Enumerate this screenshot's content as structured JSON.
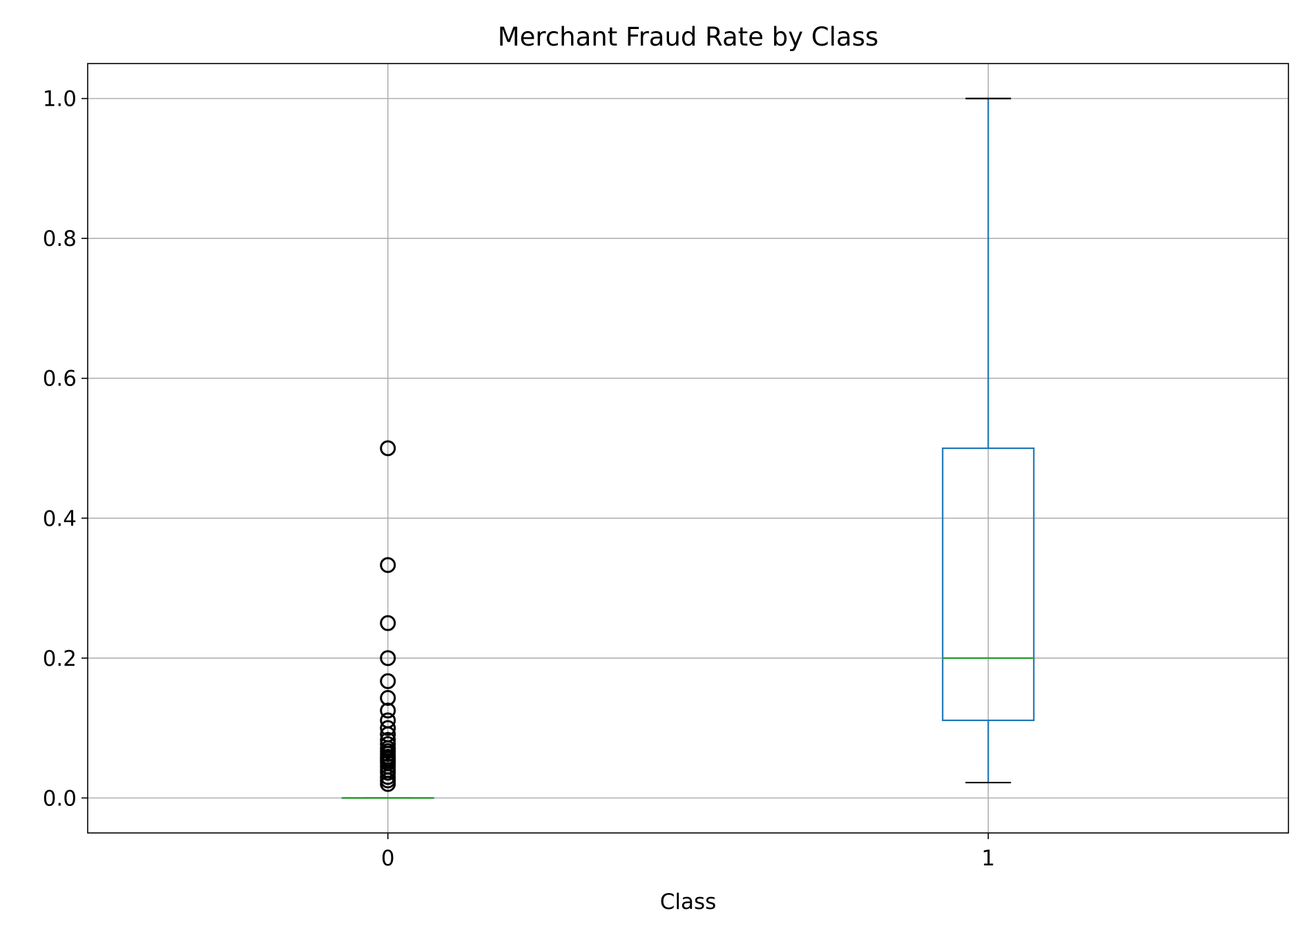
{
  "chart_data": {
    "type": "box",
    "title": "Merchant Fraud Rate by Class",
    "xlabel": "Class",
    "ylabel": "",
    "ylim": [
      -0.05,
      1.05
    ],
    "yticks": [
      0.0,
      0.2,
      0.4,
      0.6,
      0.8,
      1.0
    ],
    "ytick_labels": [
      "0.0",
      "0.2",
      "0.4",
      "0.6",
      "0.8",
      "1.0"
    ],
    "grid": true,
    "categories": [
      "0",
      "1"
    ],
    "boxes": [
      {
        "category": "0",
        "whisker_low": 0.0,
        "q1": 0.0,
        "median": 0.0,
        "q3": 0.0,
        "whisker_high": 0.0,
        "outliers": [
          0.5,
          0.333,
          0.25,
          0.2,
          0.167,
          0.143,
          0.125,
          0.111,
          0.1,
          0.091,
          0.083,
          0.077,
          0.071,
          0.067,
          0.063,
          0.059,
          0.056,
          0.053,
          0.05,
          0.045,
          0.04,
          0.036,
          0.03,
          0.025,
          0.02
        ]
      },
      {
        "category": "1",
        "whisker_low": 0.022,
        "q1": 0.111,
        "median": 0.2,
        "q3": 0.5,
        "whisker_high": 1.0,
        "outliers": []
      }
    ],
    "colors": {
      "box": "#1f77b4",
      "median": "#2ca02c",
      "whisker_cap": "#000000",
      "outlier": "#000000",
      "grid": "#b0b0b0"
    }
  }
}
